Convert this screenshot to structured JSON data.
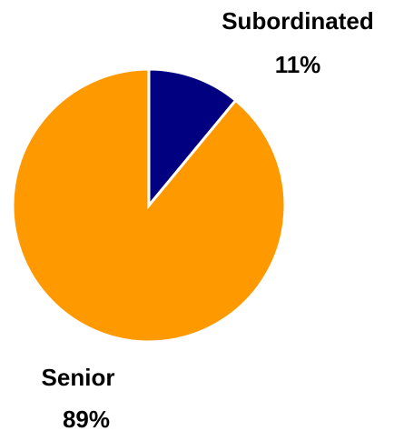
{
  "chart_data": {
    "type": "pie",
    "title": "",
    "slices": [
      {
        "label": "Subordinated",
        "percent_label": "11%",
        "value": 11,
        "color": "#000080"
      },
      {
        "label": "Senior",
        "percent_label": "89%",
        "value": 89,
        "color": "#FF9900"
      }
    ],
    "start_angle_deg": 0,
    "direction": "clockwise",
    "legend": "none"
  }
}
